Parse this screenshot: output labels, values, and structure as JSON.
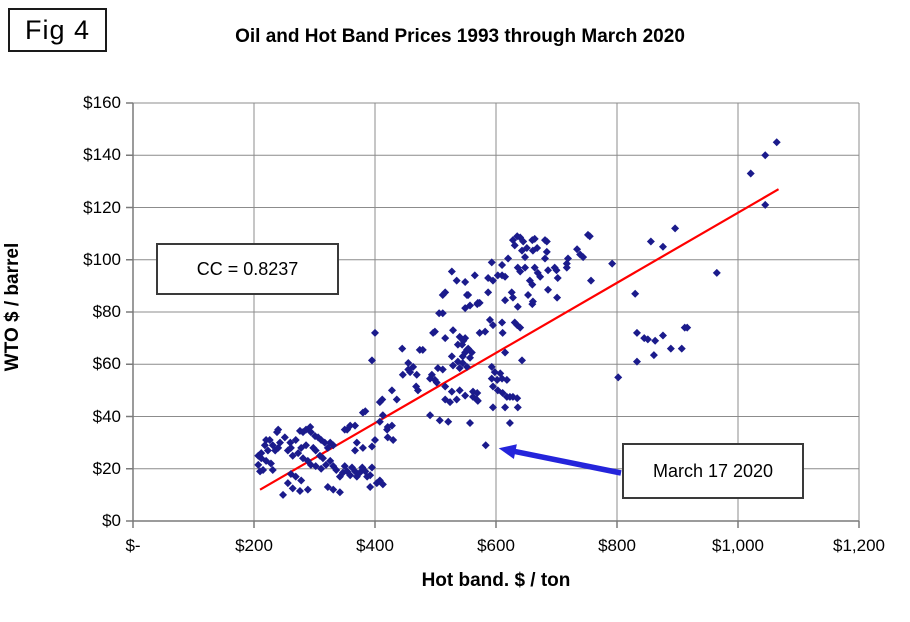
{
  "figure_label": "Fig 4",
  "title": "Oil and Hot Band Prices 1993 through March 2020",
  "annotations": {
    "cc_label": "CC = 0.8237",
    "march_label": "March 17 2020"
  },
  "colors": {
    "point": "#1b1b8c",
    "trend_line": "#ff0000",
    "arrow": "#2424db",
    "grid": "#8c8c8c",
    "axis": "#7a7a7a",
    "text": "#000000",
    "background": "#ffffff"
  },
  "chart_data": {
    "type": "scatter",
    "title": "Oil and Hot Band Prices 1993 through March 2020",
    "xlabel": "Hot band. $ / ton",
    "ylabel": "WTO $ / barrel",
    "xlim": [
      0,
      1200
    ],
    "ylim": [
      0,
      160
    ],
    "grid": true,
    "marker": "diamond",
    "x_tick_values": [
      0,
      200,
      400,
      600,
      800,
      1000,
      1200
    ],
    "x_tick_labels": [
      "$-",
      "$200",
      "$400",
      "$600",
      "$800",
      "$1,000",
      "$1,200"
    ],
    "y_tick_values": [
      0,
      20,
      40,
      60,
      80,
      100,
      120,
      140,
      160
    ],
    "y_tick_labels": [
      "$0",
      "$20",
      "$40",
      "$60",
      "$80",
      "$100",
      "$120",
      "$140",
      "$160"
    ],
    "trend_line": {
      "x1": 210,
      "y1": 12,
      "x2": 1067,
      "y2": 127
    },
    "highlight": {
      "x": 583,
      "y": 29,
      "label": "March 17 2020"
    },
    "points": [
      [
        207,
        25
      ],
      [
        207,
        21.5
      ],
      [
        210,
        19
      ],
      [
        212,
        26
      ],
      [
        212,
        24
      ],
      [
        215,
        19.5
      ],
      [
        218,
        29
      ],
      [
        220,
        31
      ],
      [
        220,
        23
      ],
      [
        223,
        27
      ],
      [
        226,
        31
      ],
      [
        228,
        22
      ],
      [
        231,
        29
      ],
      [
        231,
        19.5
      ],
      [
        235,
        27
      ],
      [
        238,
        34
      ],
      [
        240,
        35
      ],
      [
        240,
        28
      ],
      [
        243,
        30
      ],
      [
        248,
        10
      ],
      [
        251,
        32
      ],
      [
        256,
        27
      ],
      [
        256,
        14.5
      ],
      [
        260,
        30
      ],
      [
        261,
        28
      ],
      [
        261,
        18
      ],
      [
        264,
        25
      ],
      [
        264,
        12.5
      ],
      [
        269,
        31
      ],
      [
        269,
        17
      ],
      [
        273,
        26
      ],
      [
        276,
        34.5
      ],
      [
        276,
        11.5
      ],
      [
        278,
        28
      ],
      [
        278,
        15.5
      ],
      [
        281,
        34
      ],
      [
        281,
        24
      ],
      [
        286,
        35
      ],
      [
        286,
        29
      ],
      [
        289,
        23
      ],
      [
        289,
        12
      ],
      [
        293,
        36
      ],
      [
        294,
        34
      ],
      [
        294,
        21.5
      ],
      [
        298,
        28
      ],
      [
        301,
        32.5
      ],
      [
        302,
        27
      ],
      [
        302,
        21
      ],
      [
        306,
        32
      ],
      [
        309,
        25
      ],
      [
        311,
        31
      ],
      [
        311,
        20
      ],
      [
        314,
        24
      ],
      [
        317,
        30
      ],
      [
        319,
        21.5
      ],
      [
        322,
        28
      ],
      [
        322,
        13
      ],
      [
        326,
        30
      ],
      [
        326,
        23
      ],
      [
        331,
        29
      ],
      [
        331,
        21
      ],
      [
        331,
        12
      ],
      [
        336,
        19.5
      ],
      [
        342,
        17
      ],
      [
        342,
        11
      ],
      [
        347,
        18.5
      ],
      [
        350,
        21
      ],
      [
        350,
        35
      ],
      [
        354,
        19
      ],
      [
        354,
        35
      ],
      [
        359,
        17.5
      ],
      [
        359,
        36.5
      ],
      [
        362,
        20.5
      ],
      [
        367,
        19
      ],
      [
        367,
        27
      ],
      [
        367,
        36.5
      ],
      [
        370,
        17
      ],
      [
        370,
        30
      ],
      [
        375,
        18.5
      ],
      [
        379,
        20.5
      ],
      [
        380,
        28
      ],
      [
        384,
        19
      ],
      [
        387,
        17
      ],
      [
        392,
        17.5
      ],
      [
        392,
        13
      ],
      [
        395,
        20.5
      ],
      [
        395,
        28.5
      ],
      [
        400,
        31
      ],
      [
        403,
        14.5
      ],
      [
        408,
        15.5
      ],
      [
        413,
        14
      ],
      [
        380,
        41.5
      ],
      [
        384,
        42
      ],
      [
        395,
        61.5
      ],
      [
        400,
        72
      ],
      [
        408,
        38
      ],
      [
        408,
        45.5
      ],
      [
        412,
        46.5
      ],
      [
        413,
        40.5
      ],
      [
        420,
        35
      ],
      [
        421,
        32
      ],
      [
        421,
        36
      ],
      [
        428,
        36.5
      ],
      [
        428,
        50
      ],
      [
        430,
        31
      ],
      [
        436,
        46.5
      ],
      [
        445,
        66
      ],
      [
        446,
        56
      ],
      [
        455,
        60.5
      ],
      [
        455,
        58
      ],
      [
        458,
        57
      ],
      [
        463,
        59
      ],
      [
        468,
        51.5
      ],
      [
        469,
        56
      ],
      [
        471,
        50
      ],
      [
        474,
        65.5
      ],
      [
        479,
        65.5
      ],
      [
        491,
        54.5
      ],
      [
        491,
        40.5
      ],
      [
        494,
        56
      ],
      [
        496,
        72
      ],
      [
        499,
        54
      ],
      [
        499,
        72.5
      ],
      [
        502,
        53
      ],
      [
        504,
        58.5
      ],
      [
        506,
        79.5
      ],
      [
        507,
        38.5
      ],
      [
        512,
        79.5
      ],
      [
        512,
        58
      ],
      [
        516,
        70
      ],
      [
        516,
        51.5
      ],
      [
        516,
        87.5
      ],
      [
        516,
        46.5
      ],
      [
        521,
        38
      ],
      [
        524,
        45.5
      ],
      [
        527,
        49.5
      ],
      [
        527,
        63
      ],
      [
        529,
        73
      ],
      [
        529,
        59.5
      ],
      [
        535,
        46.5
      ],
      [
        537,
        67.5
      ],
      [
        537,
        61
      ],
      [
        540,
        50
      ],
      [
        540,
        70.5
      ],
      [
        540,
        58.5
      ],
      [
        544,
        67.5
      ],
      [
        545,
        63
      ],
      [
        545,
        60.5
      ],
      [
        546,
        69
      ],
      [
        549,
        48
      ],
      [
        549,
        70
      ],
      [
        549,
        64.5
      ],
      [
        552,
        86.5
      ],
      [
        552,
        65.5
      ],
      [
        552,
        59
      ],
      [
        554,
        66
      ],
      [
        557,
        62.5
      ],
      [
        557,
        82.5
      ],
      [
        557,
        37.5
      ],
      [
        560,
        64.5
      ],
      [
        562,
        49.5
      ],
      [
        562,
        47.5
      ],
      [
        568,
        46.5
      ],
      [
        569,
        49
      ],
      [
        570,
        46
      ],
      [
        570,
        83.5
      ],
      [
        573,
        72
      ],
      [
        582,
        72.5
      ],
      [
        583,
        29
      ],
      [
        587,
        87.5
      ],
      [
        590,
        77
      ],
      [
        593,
        59
      ],
      [
        593,
        54.5
      ],
      [
        595,
        75
      ],
      [
        595,
        51.5
      ],
      [
        595,
        43.5
      ],
      [
        598,
        57
      ],
      [
        602,
        54
      ],
      [
        603,
        50
      ],
      [
        607,
        56.5
      ],
      [
        610,
        76
      ],
      [
        610,
        54.5
      ],
      [
        611,
        72
      ],
      [
        611,
        49
      ],
      [
        615,
        64.5
      ],
      [
        615,
        43.5
      ],
      [
        618,
        54
      ],
      [
        618,
        47.5
      ],
      [
        623,
        47.5
      ],
      [
        623,
        37.5
      ],
      [
        628,
        47.5
      ],
      [
        631,
        76
      ],
      [
        635,
        75
      ],
      [
        635,
        47
      ],
      [
        636,
        43.5
      ],
      [
        640,
        74
      ],
      [
        643,
        61.5
      ],
      [
        512,
        86.5
      ],
      [
        527,
        95.5
      ],
      [
        535,
        92
      ],
      [
        549,
        91.5
      ],
      [
        549,
        81.5
      ],
      [
        554,
        86.5
      ],
      [
        565,
        94
      ],
      [
        569,
        83
      ],
      [
        573,
        83.5
      ],
      [
        587,
        93
      ],
      [
        593,
        99
      ],
      [
        595,
        92
      ],
      [
        603,
        94
      ],
      [
        610,
        94
      ],
      [
        610,
        98
      ],
      [
        615,
        93.5
      ],
      [
        615,
        84.5
      ],
      [
        620,
        100.5
      ],
      [
        626,
        87.5
      ],
      [
        628,
        107.5
      ],
      [
        628,
        85.5
      ],
      [
        631,
        105.5
      ],
      [
        635,
        109
      ],
      [
        636,
        97
      ],
      [
        636,
        82
      ],
      [
        640,
        108.5
      ],
      [
        640,
        95.5
      ],
      [
        643,
        103.5
      ],
      [
        645,
        107
      ],
      [
        648,
        101
      ],
      [
        648,
        97
      ],
      [
        651,
        104.5
      ],
      [
        653,
        86.5
      ],
      [
        656,
        92
      ],
      [
        660,
        107.5
      ],
      [
        660,
        90.5
      ],
      [
        660,
        83
      ],
      [
        661,
        103.5
      ],
      [
        661,
        84
      ],
      [
        664,
        108
      ],
      [
        664,
        97
      ],
      [
        668,
        104.5
      ],
      [
        669,
        95
      ],
      [
        673,
        93.5
      ],
      [
        681,
        107.5
      ],
      [
        681,
        100.5
      ],
      [
        684,
        103
      ],
      [
        684,
        107
      ],
      [
        686,
        96
      ],
      [
        686,
        88.5
      ],
      [
        697,
        97
      ],
      [
        700,
        96
      ],
      [
        701,
        85.5
      ],
      [
        702,
        93
      ],
      [
        717,
        98.5
      ],
      [
        717,
        97
      ],
      [
        719,
        100.5
      ],
      [
        734,
        104
      ],
      [
        739,
        102
      ],
      [
        744,
        101
      ],
      [
        752,
        109.5
      ],
      [
        755,
        109
      ],
      [
        757,
        92
      ],
      [
        792,
        98.5
      ],
      [
        802,
        55
      ],
      [
        830,
        87
      ],
      [
        833,
        72
      ],
      [
        833,
        61
      ],
      [
        845,
        70
      ],
      [
        851,
        69.5
      ],
      [
        856,
        107
      ],
      [
        861,
        63.5
      ],
      [
        863,
        69
      ],
      [
        876,
        105
      ],
      [
        876,
        71
      ],
      [
        889,
        66
      ],
      [
        896,
        112
      ],
      [
        907,
        66
      ],
      [
        912,
        74
      ],
      [
        916,
        74
      ],
      [
        965,
        95
      ],
      [
        1021,
        133
      ],
      [
        1045,
        140
      ],
      [
        1045,
        121
      ],
      [
        1064,
        145
      ]
    ]
  }
}
